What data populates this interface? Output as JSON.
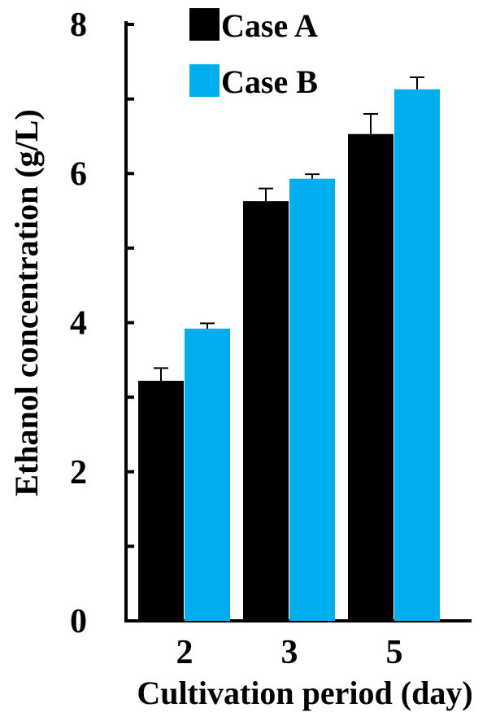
{
  "chart_data": {
    "type": "bar",
    "title": "",
    "xlabel": "Cultivation period (day)",
    "ylabel": "Ethanol concentration (g/L)",
    "categories": [
      "2",
      "3",
      "5"
    ],
    "ylim": [
      0,
      8
    ],
    "yticks": [
      0,
      2,
      4,
      6,
      8
    ],
    "y_minor_ticks": [
      1,
      3,
      5,
      7
    ],
    "series": [
      {
        "name": "Case A",
        "color": "#000000",
        "values": [
          3.22,
          5.63,
          6.53
        ],
        "errors": [
          0.17,
          0.17,
          0.27
        ]
      },
      {
        "name": "Case B",
        "color": "#00AEEF",
        "values": [
          3.92,
          5.93,
          7.13
        ],
        "errors": [
          0.07,
          0.06,
          0.16
        ]
      }
    ],
    "legend_position": "top-left",
    "grid": false
  }
}
